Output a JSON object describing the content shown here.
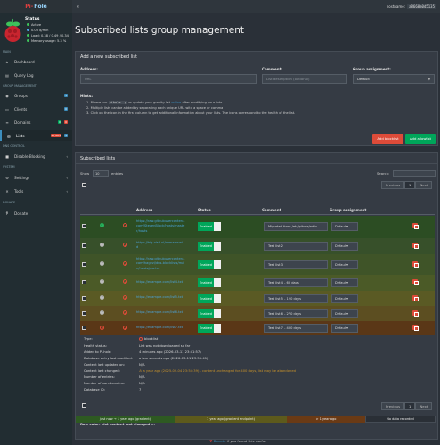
{
  "app": {
    "brand_pi": "Pi-",
    "brand_hole": "hole",
    "hostname_label": "hostname:",
    "hostname_value": "a8660a0d5135",
    "collapse_icon": "double-chevron-left-icon"
  },
  "sidebar": {
    "status_title": "Status",
    "status_lines": [
      "Active",
      "0.00 q/min",
      "Load: 0.38 / 0.49 / 0.34",
      "Memory usage: 5.3 %"
    ],
    "status_colors": [
      "#3ec35b",
      "#4ea7e8",
      "#3ec35b",
      "#3ec35b"
    ],
    "section_main": "MAIN",
    "dashboard": "Dashboard",
    "query_log": "Query Log",
    "section_group": "GROUP MANAGEMENT",
    "groups": "Groups",
    "groups_badge": "1",
    "clients": "Clients",
    "clients_badge": "0",
    "domains": "Domains",
    "domains_badge_a": "0",
    "domains_badge_b": "0",
    "lists": "Lists",
    "lists_badge_a": "71,667",
    "lists_badge_b": "7",
    "section_dns": "DNS CONTROL",
    "disable_blocking": "Disable Blocking",
    "section_system": "SYSTEM",
    "settings": "Settings",
    "tools": "Tools",
    "section_donate": "DONATE",
    "donate": "Donate"
  },
  "page": {
    "title": "Subscribed lists group management"
  },
  "add_form": {
    "header": "Add a new subscribed list",
    "address_label": "Address:",
    "address_placeholder": "URL",
    "comment_label": "Comment:",
    "comment_placeholder": "List description (optional)",
    "group_label": "Group assignment:",
    "group_value": "Default",
    "hints_title": "Hints:",
    "hint1_a": "1. Please run ",
    "hint1_code": "pihole -g",
    "hint1_b": " or update your gravity list ",
    "hint1_link": "online",
    "hint1_c": " after modifying your lists.",
    "hint2": "2. Multiple lists can be added by separating each unique URL with a space or comma",
    "hint3": "3. Click on the icon in the first column to get additional information about your lists. The icons correspond to the health of the list.",
    "add_blocklist": "Add blocklist",
    "add_allowlist": "Add allowlist"
  },
  "table": {
    "header": "Subscribed lists",
    "show_label": "Show",
    "show_value": "10",
    "entries_label": "entries",
    "search_label": "Search:",
    "col_address": "Address",
    "col_status": "Status",
    "col_comment": "Comment",
    "col_group": "Group assignment",
    "rows": [
      {
        "status": "ok",
        "address": [
          "https://raw.githubusercontent.",
          "com/StevenBlack/hosts/maste",
          "r/hosts"
        ],
        "enabled": "Enabled",
        "comment": "Migrated from /etc/pihole/adlis",
        "group": "Default",
        "bg": "#2c4d23"
      },
      {
        "status": "q",
        "address": [
          "https://big.oisd.nl/domainswil",
          "d"
        ],
        "enabled": "Enabled",
        "comment": "Test list 2",
        "group": "Default",
        "bg": "#37502a"
      },
      {
        "status": "q",
        "address": [
          "https://raw.githubusercontent.",
          "com/hagezi/dns-blocklists/mai",
          "n/hosts/pro.txt"
        ],
        "enabled": "Enabled",
        "comment": "Test list 3",
        "group": "Default",
        "bg": "#3f5428"
      },
      {
        "status": "q",
        "address": [
          "https://example.com/list4.txt"
        ],
        "enabled": "Enabled",
        "comment": "Test list 4 - 60 days",
        "group": "Default",
        "bg": "#4b5a27"
      },
      {
        "status": "q",
        "address": [
          "https://example.com/list5.txt"
        ],
        "enabled": "Enabled",
        "comment": "Test list 5 - 120 days",
        "group": "Default",
        "bg": "#5a5a24"
      },
      {
        "status": "q",
        "address": [
          "https://example.com/list6.txt"
        ],
        "enabled": "Enabled",
        "comment": "Test list 6 - 270 days",
        "group": "Default",
        "bg": "#5c4e21"
      },
      {
        "status": "no",
        "address": [
          "https://example.com/list7.txt"
        ],
        "enabled": "Enabled",
        "comment": "Test list 7 - 400 days",
        "group": "Default",
        "bg": "#5a3717"
      }
    ],
    "details": [
      {
        "label": "Type:",
        "value": "blocklist"
      },
      {
        "label": "Health status:",
        "value": "List was not downloaded so far"
      },
      {
        "label": "Added to Pi-hole:",
        "value": "4 minutes ago (2026-03-11 23:51:57)"
      },
      {
        "label": "Database entry last modified:",
        "value": "a few seconds ago (2026-03-11 23:55:41)"
      },
      {
        "label": "Content last updated on:",
        "value": "N/A"
      },
      {
        "label": "Content last changed:",
        "value": "a year ago (2025-02-04 23:55:39) - content unchanged for 400 days, list may be abandoned"
      },
      {
        "label": "Number of entries:",
        "value": "N/A"
      },
      {
        "label": "Number of non-domains:",
        "value": "N/A"
      },
      {
        "label": "Database ID:",
        "value": "7"
      }
    ],
    "pager_prev": "Previous",
    "pager_page": "1",
    "pager_next": "Next",
    "showing": "Showing 1 to 7 of 7 entries",
    "legend_title": "Row color: List content last changed ...",
    "legend": [
      {
        "text": "just now → 1 year ago (gradient)",
        "color": "#2e5a22"
      },
      {
        "text": "1 year ago (gradient endpoint)",
        "color": "#5d5a1c"
      },
      {
        "text": "> 1 year ago",
        "color": "#6a3a15"
      },
      {
        "text": "No data recorded",
        "color": "#2a2f36"
      }
    ]
  },
  "footer": {
    "a": "Donate",
    "b": " if you found this useful."
  }
}
